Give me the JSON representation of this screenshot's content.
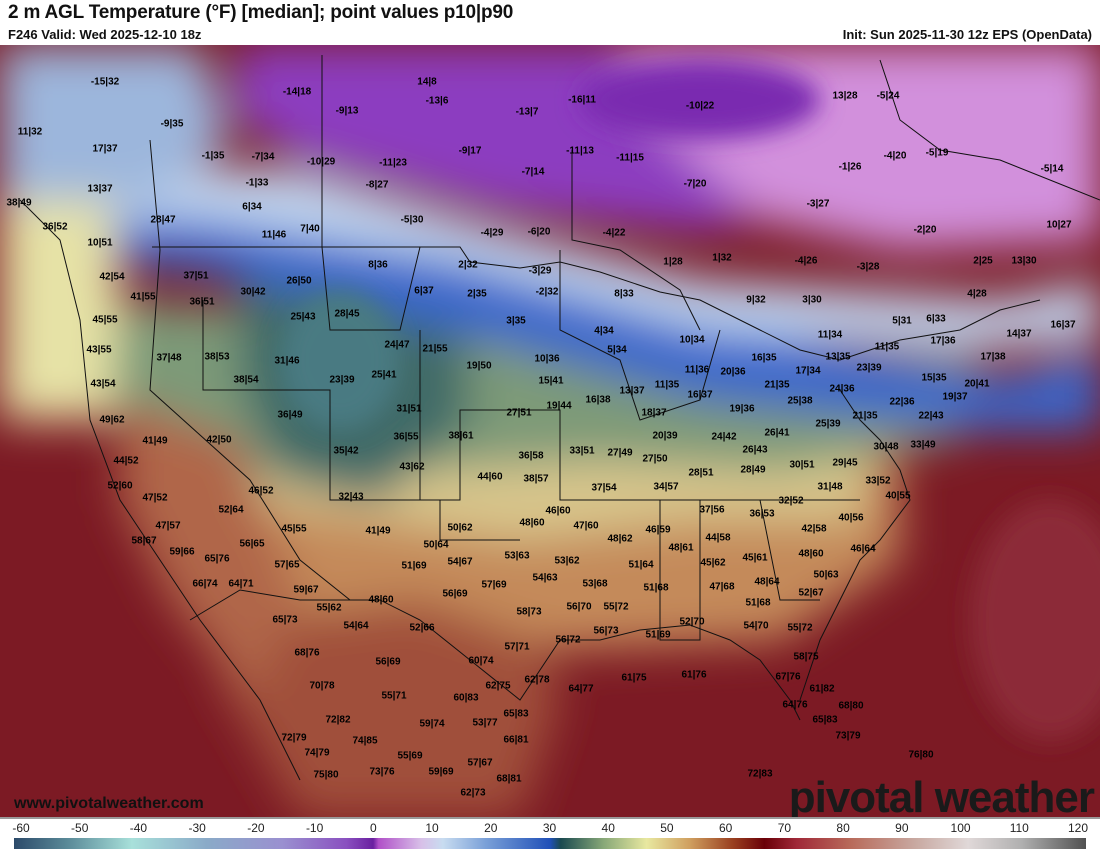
{
  "header": {
    "title": "2 m AGL Temperature (°F) [median]; point values p10|p90",
    "valid": "F246 Valid: Wed 2025-12-10 18z",
    "init": "Init: Sun 2025-11-30 12z EPS (OpenData)"
  },
  "footer": {
    "site": "www.pivotalweather.com",
    "brand": "pivotal weather"
  },
  "colorbar": {
    "ticks": [
      "-60",
      "-50",
      "-40",
      "-30",
      "-20",
      "-10",
      "0",
      "10",
      "20",
      "30",
      "40",
      "50",
      "60",
      "70",
      "80",
      "90",
      "100",
      "110",
      "120"
    ],
    "range": [
      -60,
      120
    ]
  },
  "point_values": [
    "-15|32",
    "14|8",
    "-14|18",
    "-13|6",
    "-9|13",
    "-16|11",
    "-10|22",
    "13|28",
    "-5|24",
    "11|32",
    "-9|35",
    "-13|7",
    "17|37",
    "-1|35",
    "-7|34",
    "-10|29",
    "-11|23",
    "-9|17",
    "-11|13",
    "-11|15",
    "-1|26",
    "-4|20",
    "-5|19",
    "-5|14",
    "13|37",
    "-1|33",
    "-8|27",
    "-7|14",
    "-7|20",
    "38|49",
    "6|34",
    "-3|27",
    "28|47",
    "36|52",
    "-5|30",
    "11|46",
    "7|40",
    "-4|29",
    "-6|20",
    "-4|22",
    "-2|20",
    "10|27",
    "10|51",
    "42|54",
    "37|51",
    "26|50",
    "8|36",
    "2|32",
    "-3|29",
    "1|28",
    "1|32",
    "-4|26",
    "-3|28",
    "2|25",
    "13|30",
    "41|55",
    "30|42",
    "6|37",
    "2|35",
    "-2|32",
    "8|33",
    "9|32",
    "3|30",
    "4|28",
    "45|55",
    "36|51",
    "25|43",
    "28|45",
    "3|35",
    "5|31",
    "6|33",
    "14|37",
    "16|37",
    "43|55",
    "4|34",
    "10|34",
    "11|34",
    "17|36",
    "37|48",
    "38|53",
    "24|47",
    "21|55",
    "5|34",
    "16|35",
    "13|35",
    "11|35",
    "17|38",
    "31|46",
    "19|50",
    "10|36",
    "11|36",
    "20|36",
    "17|34",
    "23|39",
    "43|54",
    "38|54",
    "23|39",
    "25|41",
    "15|41",
    "11|35",
    "21|35",
    "24|36",
    "15|35",
    "20|41",
    "13|37",
    "16|37",
    "16|38",
    "19|44",
    "25|38",
    "22|36",
    "19|37",
    "36|49",
    "31|51",
    "27|51",
    "18|37",
    "19|36",
    "21|35",
    "22|43",
    "49|62",
    "25|39",
    "41|49",
    "42|50",
    "36|55",
    "38|61",
    "20|39",
    "24|42",
    "26|41",
    "33|49",
    "30|48",
    "35|42",
    "36|58",
    "33|51",
    "27|49",
    "27|50",
    "26|43",
    "44|52",
    "43|62",
    "29|45",
    "44|60",
    "38|57",
    "28|51",
    "28|49",
    "30|51",
    "52|60",
    "37|54",
    "34|57",
    "31|48",
    "33|52",
    "46|52",
    "32|43",
    "47|52",
    "40|55",
    "32|52",
    "52|64",
    "46|60",
    "37|56",
    "36|53",
    "40|56",
    "45|55",
    "41|49",
    "50|62",
    "48|60",
    "47|60",
    "46|59",
    "42|58",
    "47|57",
    "58|67",
    "50|64",
    "48|62",
    "48|61",
    "44|58",
    "46|64",
    "59|66",
    "65|76",
    "56|65",
    "53|63",
    "53|62",
    "45|62",
    "45|61",
    "48|60",
    "57|65",
    "51|69",
    "54|67",
    "51|64",
    "50|63",
    "66|74",
    "64|71",
    "54|63",
    "57|69",
    "53|68",
    "51|68",
    "47|68",
    "48|64",
    "59|67",
    "56|69",
    "48|60",
    "52|67",
    "51|68",
    "55|62",
    "58|73",
    "56|70",
    "55|72",
    "65|73",
    "54|64",
    "52|66",
    "56|73",
    "52|70",
    "54|70",
    "55|72",
    "56|72",
    "51|69",
    "68|76",
    "56|69",
    "60|74",
    "57|71",
    "58|75",
    "62|75",
    "62|78",
    "64|77",
    "61|75",
    "61|76",
    "67|76",
    "70|78",
    "55|71",
    "60|83",
    "61|82",
    "64|76",
    "68|80",
    "72|82",
    "59|74",
    "53|77",
    "65|83",
    "65|83",
    "72|79",
    "74|85",
    "66|81",
    "73|79",
    "74|79",
    "55|69",
    "57|67",
    "76|80",
    "75|80",
    "73|76",
    "59|69",
    "68|81",
    "72|83",
    "62|73"
  ]
}
